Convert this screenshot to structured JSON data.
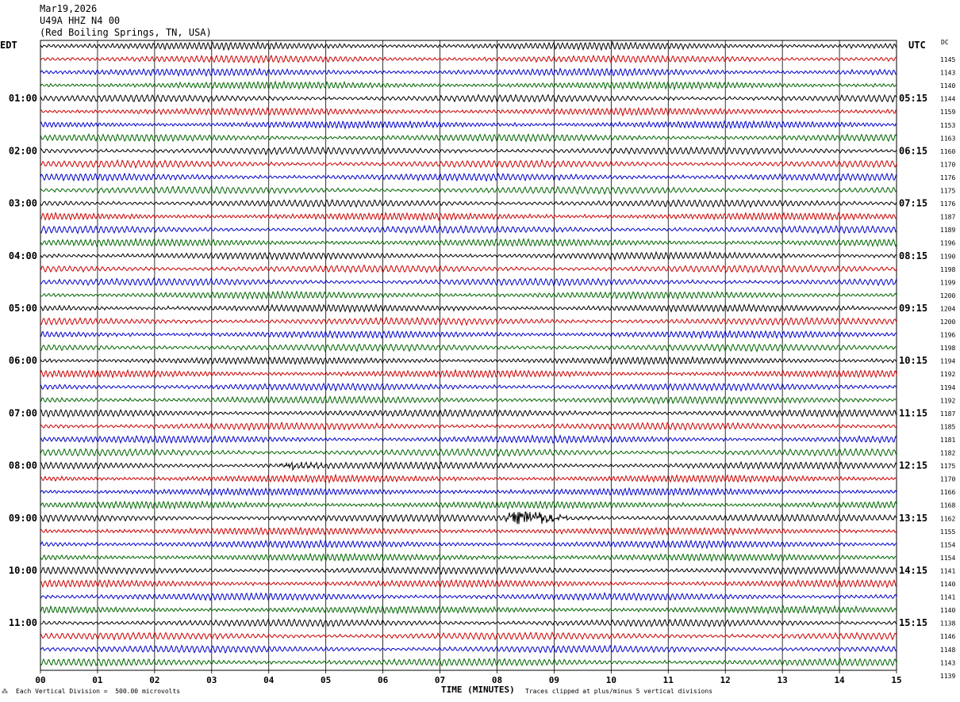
{
  "header": {
    "date": "Mar19,2026",
    "station": "U49A HHZ N4 00",
    "location": "(Red Boiling Springs, TN, USA)"
  },
  "labels": {
    "left_tz": "EDT",
    "right_tz": "UTC",
    "dc": "DC"
  },
  "footer": {
    "scale": "Each Vertical Division =  500.00 microvolts",
    "xlabel": "TIME (MINUTES)",
    "clip": "Traces clipped at plus/minus 5 vertical divisions"
  },
  "chart_data": {
    "type": "line",
    "title": "U49A HHZ N4 00",
    "xlabel": "TIME (MINUTES)",
    "xlim": [
      0,
      15
    ],
    "x_ticks": [
      "00",
      "01",
      "02",
      "03",
      "04",
      "05",
      "06",
      "07",
      "08",
      "09",
      "10",
      "11",
      "12",
      "13",
      "14",
      "15"
    ],
    "trace_colors": [
      "#000000",
      "#cc0000",
      "#0000cc",
      "#006600"
    ],
    "left_hour_labels": [
      "01:00",
      "02:00",
      "03:00",
      "04:00",
      "05:00",
      "06:00",
      "07:00",
      "08:00",
      "09:00",
      "10:00",
      "11:00"
    ],
    "right_hour_labels": [
      "05:15",
      "06:15",
      "07:15",
      "08:15",
      "09:15",
      "10:15",
      "11:15",
      "12:15",
      "13:15",
      "14:15",
      "15:15"
    ],
    "dc_offsets": [
      1145,
      1143,
      1140,
      1144,
      1159,
      1153,
      1163,
      1160,
      1170,
      1176,
      1175,
      1176,
      1187,
      1189,
      1196,
      1190,
      1198,
      1199,
      1200,
      1204,
      1200,
      1196,
      1198,
      1194,
      1192,
      1194,
      1192,
      1187,
      1185,
      1181,
      1182,
      1175,
      1170,
      1166,
      1168,
      1162,
      1155,
      1154,
      1154,
      1141,
      1140,
      1141,
      1140,
      1138,
      1146,
      1148,
      1143,
      1139
    ],
    "events": [
      {
        "trace": 32,
        "start_min": 4.1,
        "peak_min": 4.35,
        "end_min": 5.2,
        "amplitude": 0.6
      },
      {
        "trace": 36,
        "start_min": 8.1,
        "peak_min": 8.45,
        "end_min": 10.0,
        "amplitude": 1.6
      }
    ],
    "grid": true
  }
}
